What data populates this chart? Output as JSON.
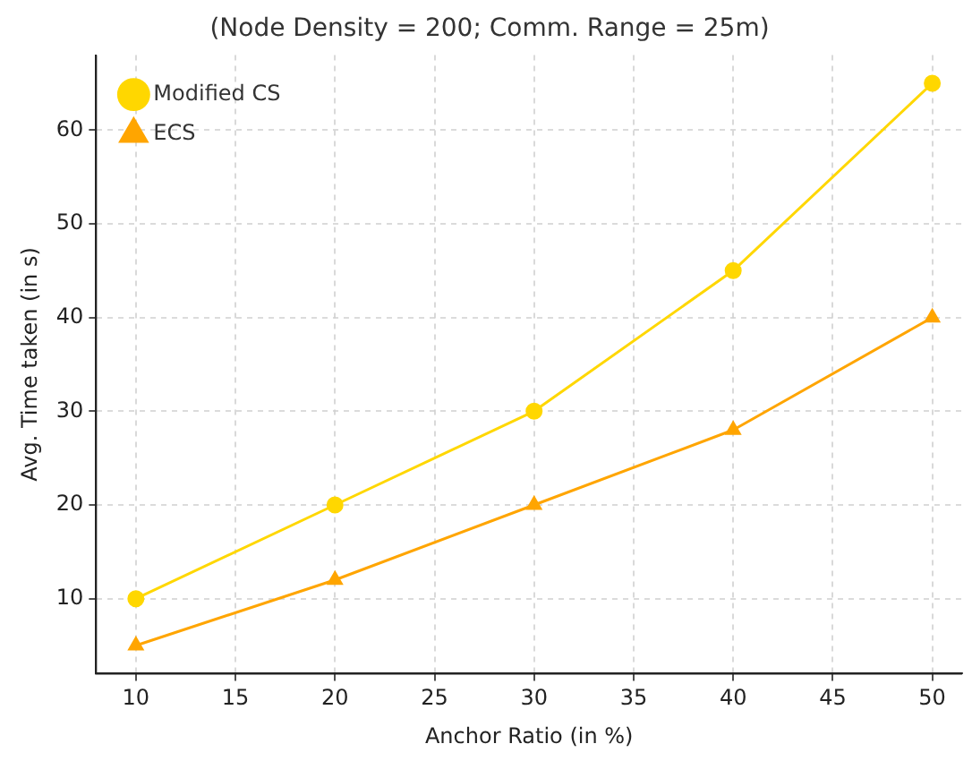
{
  "chart_data": {
    "type": "line",
    "title": "(Node Density = 200; Comm. Range = 25m)",
    "xlabel": "Anchor Ratio (in %)",
    "ylabel": "Avg. Time taken (in s)",
    "x": [
      10,
      20,
      30,
      40,
      50
    ],
    "series": [
      {
        "name": "Modified CS",
        "color": "#ffd700",
        "marker": "circle",
        "values": [
          10,
          20,
          30,
          45,
          65
        ]
      },
      {
        "name": "ECS",
        "color": "#ffa500",
        "marker": "triangle",
        "values": [
          5,
          12,
          20,
          28,
          40
        ]
      }
    ],
    "xlim": [
      8,
      51.5
    ],
    "xticks": [
      10,
      15,
      20,
      25,
      30,
      35,
      40,
      45,
      50
    ],
    "ylim": [
      2,
      68
    ],
    "yticks": [
      10,
      20,
      30,
      40,
      50,
      60
    ],
    "grid": true,
    "legend": "top left",
    "line_style": "solid"
  }
}
